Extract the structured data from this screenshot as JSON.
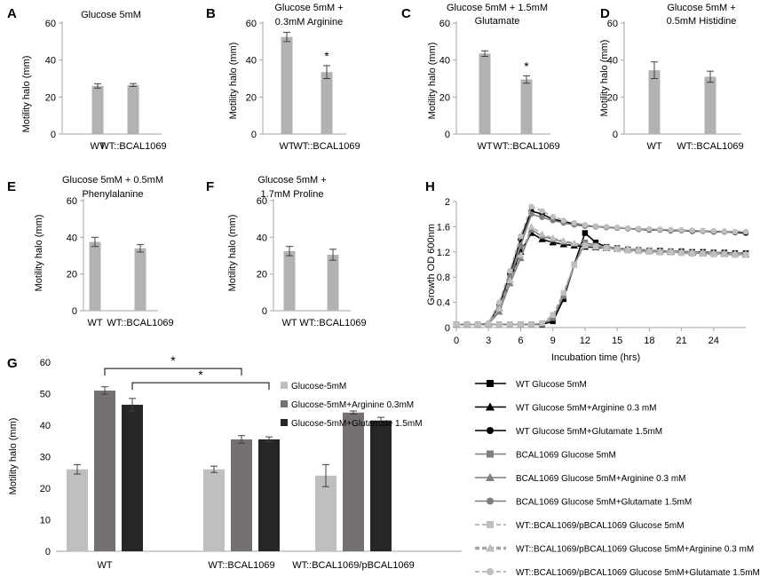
{
  "colors": {
    "light": "#bfbfbf",
    "panel_bar": "#b4b2b0",
    "mid": "#767171",
    "dark": "#262626",
    "axis": "#a6a6a6",
    "gray_line": "#7f7f7f",
    "gray_marker": "#a6a6a6",
    "light_marker": "#bfbfbf"
  },
  "chart_data": [
    {
      "panel": "A",
      "type": "bar",
      "title": [
        "Glucose 5mM"
      ],
      "ylabel": "Motility halo (mm)",
      "ylim": [
        0,
        60
      ],
      "yticks": [
        0,
        20,
        40,
        60
      ],
      "categories": [
        "WT",
        "WT::BCAL1069"
      ],
      "values": [
        26,
        26.5
      ],
      "errors": [
        1.2,
        0.8
      ],
      "significance": [
        "",
        ""
      ]
    },
    {
      "panel": "B",
      "type": "bar",
      "title": [
        "Glucose 5mM +",
        "0.3mM Arginine"
      ],
      "ylabel": "Motility halo (mm)",
      "ylim": [
        0,
        60
      ],
      "yticks": [
        0,
        20,
        40,
        60
      ],
      "categories": [
        "WT",
        "WT::BCAL1069"
      ],
      "values": [
        52.5,
        33.5
      ],
      "errors": [
        2.5,
        3.5
      ],
      "significance": [
        "",
        "*"
      ]
    },
    {
      "panel": "C",
      "type": "bar",
      "title": [
        "Glucose 5mM +       1.5mM",
        "Glutamate"
      ],
      "ylabel": "Motility halo (mm)",
      "ylim": [
        0,
        60
      ],
      "yticks": [
        0,
        20,
        40,
        60
      ],
      "categories": [
        "WT",
        "WT::BCAL1069"
      ],
      "values": [
        43.5,
        29.5
      ],
      "errors": [
        1.5,
        2
      ],
      "significance": [
        "",
        "*"
      ]
    },
    {
      "panel": "D",
      "type": "bar",
      "title": [
        "Glucose 5mM +",
        "0.5mM Histidine"
      ],
      "ylabel": "Motility halo (mm)",
      "ylim": [
        0,
        60
      ],
      "yticks": [
        0,
        20,
        40,
        60
      ],
      "categories": [
        "WT",
        "WT::BCAL1069"
      ],
      "values": [
        34.5,
        31
      ],
      "errors": [
        4.5,
        3
      ],
      "significance": [
        "",
        ""
      ]
    },
    {
      "panel": "E",
      "type": "bar",
      "title": [
        "Glucose 5mM + 0.5mM",
        "Phenylalanine"
      ],
      "ylabel": "Motility halo (mm)",
      "ylim": [
        0,
        60
      ],
      "yticks": [
        0,
        20,
        40,
        60
      ],
      "categories": [
        "WT",
        "WT::BCAL1069"
      ],
      "values": [
        37.5,
        34
      ],
      "errors": [
        2.5,
        2
      ],
      "significance": [
        "",
        ""
      ]
    },
    {
      "panel": "F",
      "type": "bar",
      "title": [
        "Glucose 5mM +",
        "1.7mM Proline"
      ],
      "ylabel": "Motility halo (mm)",
      "ylim": [
        0,
        60
      ],
      "yticks": [
        0,
        20,
        40,
        60
      ],
      "categories": [
        "WT",
        "WT::BCAL1069"
      ],
      "values": [
        32.5,
        30.5
      ],
      "errors": [
        2.5,
        3
      ],
      "significance": [
        "",
        ""
      ]
    },
    {
      "panel": "G",
      "type": "bar",
      "ylabel": "Motility halo (mm)",
      "ylim": [
        0,
        60
      ],
      "yticks": [
        0,
        10,
        20,
        30,
        40,
        50,
        60
      ],
      "categories": [
        "WT",
        "WT::BCAL1069",
        "WT::BCAL1069/pBCAL1069"
      ],
      "series": [
        {
          "name": "Glucose-5mM",
          "color": "#bfbfbf",
          "values": [
            26,
            26,
            24
          ],
          "errors": [
            1.5,
            1,
            3.5
          ]
        },
        {
          "name": "Glucose-5mM+Arginine 0.3mM",
          "color": "#767171",
          "values": [
            51,
            35.5,
            44
          ],
          "errors": [
            1.2,
            1.2,
            0.5
          ]
        },
        {
          "name": "Glucose-5mM+Glutamate 1.5mM",
          "color": "#262626",
          "values": [
            46.5,
            35.5,
            41.5
          ],
          "errors": [
            2,
            0.8,
            1
          ]
        }
      ],
      "significance": [
        {
          "label": "*",
          "from": [
            "WT",
            "Glucose-5mM+Arginine 0.3mM"
          ],
          "to": [
            "WT::BCAL1069",
            "Glucose-5mM+Arginine 0.3mM"
          ],
          "level": 58
        },
        {
          "label": "*",
          "from": [
            "WT",
            "Glucose-5mM+Glutamate 1.5mM"
          ],
          "to": [
            "WT::BCAL1069",
            "Glucose-5mM+Glutamate 1.5mM"
          ],
          "level": 53.5
        }
      ]
    },
    {
      "panel": "H",
      "type": "line",
      "xlabel": "Incubation time (hrs)",
      "ylabel": "Growth OD 600nm",
      "xlim": [
        0,
        27
      ],
      "ylim": [
        0,
        2
      ],
      "xticks": [
        0,
        3,
        6,
        9,
        12,
        15,
        18,
        21,
        24
      ],
      "yticks": [
        0,
        0.4,
        0.8,
        1.2,
        1.6,
        2
      ],
      "yticklabels": [
        "0",
        "0.4",
        "0.8",
        "1.2",
        "1.6",
        "2"
      ],
      "series": [
        {
          "name": "WT Glucose 5mM",
          "line": "solid",
          "color": "#000000",
          "marker": "square",
          "x": [
            0,
            1,
            2,
            3,
            4,
            5,
            6,
            7,
            8,
            9,
            10,
            11,
            12,
            13,
            14,
            15,
            16,
            17,
            18,
            19,
            20,
            21,
            22,
            23,
            24,
            25,
            26,
            27
          ],
          "y": [
            0.05,
            0.05,
            0.05,
            0.05,
            0.05,
            0.05,
            0.05,
            0.05,
            0.05,
            0.1,
            0.45,
            1.0,
            1.5,
            1.35,
            1.28,
            1.26,
            1.24,
            1.23,
            1.22,
            1.22,
            1.21,
            1.21,
            1.2,
            1.2,
            1.19,
            1.19,
            1.18,
            1.18
          ]
        },
        {
          "name": "WT Glucose 5mM+Arginine 0.3 mM",
          "line": "solid",
          "color": "#000000",
          "marker": "triangle",
          "x": [
            0,
            1,
            2,
            3,
            4,
            5,
            6,
            7,
            8,
            9,
            10,
            11,
            12,
            13,
            14,
            15,
            16,
            17,
            18,
            19,
            20,
            21,
            22,
            23,
            24,
            25,
            26,
            27
          ],
          "y": [
            0.05,
            0.05,
            0.05,
            0.06,
            0.3,
            0.75,
            1.2,
            1.5,
            1.4,
            1.35,
            1.32,
            1.3,
            1.28,
            1.27,
            1.26,
            1.25,
            1.24,
            1.23,
            1.22,
            1.21,
            1.2,
            1.2,
            1.19,
            1.18,
            1.18,
            1.17,
            1.17,
            1.16
          ]
        },
        {
          "name": "WT Glucose 5mM+Glutamate 1.5mM",
          "line": "solid",
          "color": "#000000",
          "marker": "circle",
          "x": [
            0,
            1,
            2,
            3,
            4,
            5,
            6,
            7,
            8,
            9,
            10,
            11,
            12,
            13,
            14,
            15,
            16,
            17,
            18,
            19,
            20,
            21,
            22,
            23,
            24,
            25,
            26,
            27
          ],
          "y": [
            0.05,
            0.05,
            0.05,
            0.06,
            0.35,
            0.85,
            1.4,
            1.85,
            1.8,
            1.72,
            1.68,
            1.65,
            1.62,
            1.6,
            1.59,
            1.58,
            1.57,
            1.56,
            1.55,
            1.55,
            1.54,
            1.54,
            1.53,
            1.53,
            1.52,
            1.52,
            1.51,
            1.5
          ]
        },
        {
          "name": "BCAL1069 Glucose 5mM",
          "line": "solid",
          "color": "#7f7f7f",
          "marker": "square",
          "x": [
            0,
            1,
            2,
            3,
            4,
            5,
            6,
            7,
            8,
            9,
            10,
            11,
            12,
            13,
            14,
            15,
            16,
            17,
            18,
            19,
            20,
            21,
            22,
            23,
            24,
            25,
            26,
            27
          ],
          "y": [
            0.05,
            0.05,
            0.05,
            0.05,
            0.05,
            0.05,
            0.05,
            0.05,
            0.06,
            0.15,
            0.5,
            1.0,
            1.35,
            1.3,
            1.27,
            1.25,
            1.23,
            1.22,
            1.21,
            1.2,
            1.2,
            1.19,
            1.18,
            1.18,
            1.17,
            1.17,
            1.16,
            1.16
          ]
        },
        {
          "name": "BCAL1069 Glucose 5mM+Arginine 0.3 mM",
          "line": "solid",
          "color": "#7f7f7f",
          "marker": "triangle",
          "x": [
            0,
            1,
            2,
            3,
            4,
            5,
            6,
            7,
            8,
            9,
            10,
            11,
            12,
            13,
            14,
            15,
            16,
            17,
            18,
            19,
            20,
            21,
            22,
            23,
            24,
            25,
            26,
            27
          ],
          "y": [
            0.05,
            0.05,
            0.05,
            0.06,
            0.25,
            0.7,
            1.1,
            1.55,
            1.45,
            1.4,
            1.36,
            1.33,
            1.3,
            1.28,
            1.27,
            1.26,
            1.25,
            1.24,
            1.23,
            1.22,
            1.21,
            1.21,
            1.2,
            1.19,
            1.19,
            1.18,
            1.18,
            1.17
          ]
        },
        {
          "name": "BCAL1069 Glucose 5mM+Glutamate 1.5mM",
          "line": "solid",
          "color": "#7f7f7f",
          "marker": "circle",
          "x": [
            0,
            1,
            2,
            3,
            4,
            5,
            6,
            7,
            8,
            9,
            10,
            11,
            12,
            13,
            14,
            15,
            16,
            17,
            18,
            19,
            20,
            21,
            22,
            23,
            24,
            25,
            26,
            27
          ],
          "y": [
            0.05,
            0.05,
            0.05,
            0.06,
            0.3,
            0.8,
            1.3,
            1.8,
            1.75,
            1.7,
            1.66,
            1.63,
            1.61,
            1.6,
            1.59,
            1.58,
            1.57,
            1.56,
            1.56,
            1.55,
            1.55,
            1.54,
            1.54,
            1.53,
            1.53,
            1.52,
            1.52,
            1.52
          ]
        },
        {
          "name": "WT::BCAL1069/pBCAL1069 Glucose 5mM",
          "line": "dashed",
          "color": "#a6a6a6",
          "marker": "square",
          "x": [
            0,
            1,
            2,
            3,
            4,
            5,
            6,
            7,
            8,
            9,
            10,
            11,
            12,
            13,
            14,
            15,
            16,
            17,
            18,
            19,
            20,
            21,
            22,
            23,
            24,
            25,
            26,
            27
          ],
          "y": [
            0.05,
            0.05,
            0.05,
            0.05,
            0.05,
            0.05,
            0.05,
            0.05,
            0.07,
            0.2,
            0.55,
            1.0,
            1.3,
            1.28,
            1.26,
            1.24,
            1.22,
            1.21,
            1.2,
            1.19,
            1.19,
            1.18,
            1.17,
            1.17,
            1.16,
            1.16,
            1.15,
            1.15
          ]
        },
        {
          "name": "WT::BCAL1069/pBCAL1069 Glucose 5mM+Arginine 0.3 mM",
          "line": "dashed",
          "color": "#a6a6a6",
          "marker": "triangle",
          "x": [
            0,
            1,
            2,
            3,
            4,
            5,
            6,
            7,
            8,
            9,
            10,
            11,
            12,
            13,
            14,
            15,
            16,
            17,
            18,
            19,
            20,
            21,
            22,
            23,
            24,
            25,
            26,
            27
          ],
          "y": [
            0.05,
            0.05,
            0.05,
            0.07,
            0.3,
            0.75,
            1.15,
            1.6,
            1.48,
            1.42,
            1.38,
            1.34,
            1.31,
            1.29,
            1.27,
            1.26,
            1.25,
            1.24,
            1.23,
            1.22,
            1.21,
            1.2,
            1.2,
            1.19,
            1.18,
            1.18,
            1.17,
            1.17
          ]
        },
        {
          "name": "WT::BCAL1069/pBCAL1069 Glucose 5mM+Glutamate 1.5mM",
          "line": "dashed",
          "color": "#a6a6a6",
          "marker": "circle",
          "x": [
            0,
            1,
            2,
            3,
            4,
            5,
            6,
            7,
            8,
            9,
            10,
            11,
            12,
            13,
            14,
            15,
            16,
            17,
            18,
            19,
            20,
            21,
            22,
            23,
            24,
            25,
            26,
            27
          ],
          "y": [
            0.05,
            0.05,
            0.05,
            0.07,
            0.4,
            0.9,
            1.45,
            1.92,
            1.85,
            1.76,
            1.7,
            1.66,
            1.63,
            1.61,
            1.6,
            1.59,
            1.58,
            1.57,
            1.56,
            1.56,
            1.55,
            1.55,
            1.54,
            1.54,
            1.53,
            1.53,
            1.52,
            1.52
          ]
        }
      ]
    }
  ]
}
